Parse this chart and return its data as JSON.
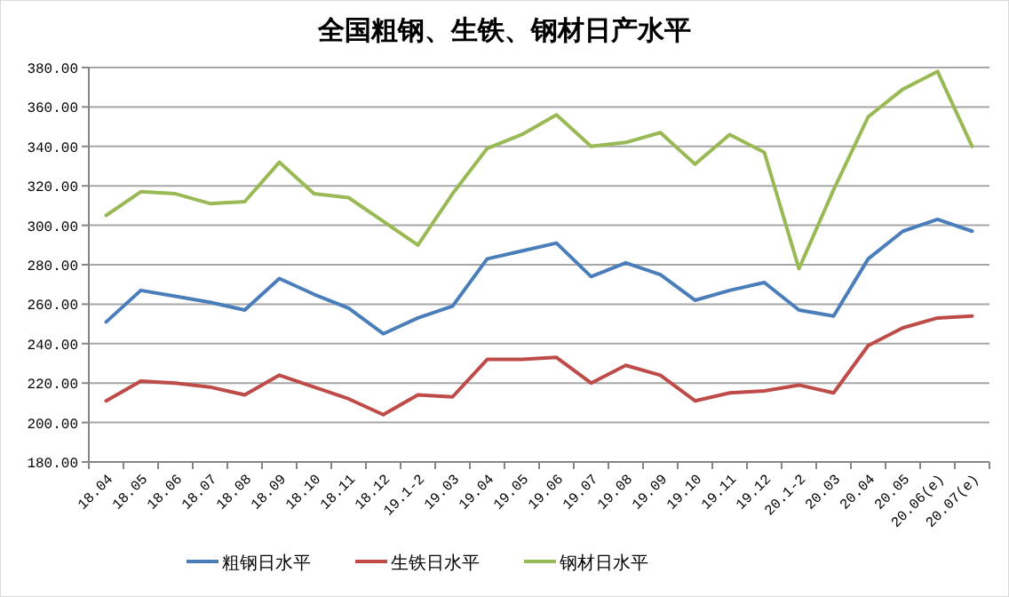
{
  "chart_data": {
    "type": "line",
    "title": "全国粗钢、生铁、钢材日产水平",
    "categories": [
      "18.04",
      "18.05",
      "18.06",
      "18.07",
      "18.08",
      "18.09",
      "18.10",
      "18.11",
      "18.12",
      "19.1-2",
      "19.03",
      "19.04",
      "19.05",
      "19.06",
      "19.07",
      "19.08",
      "19.09",
      "19.10",
      "19.11",
      "19.12",
      "20.1-2",
      "20.03",
      "20.04",
      "20.05",
      "20.06(e)",
      "20.07(e)"
    ],
    "series": [
      {
        "name": "粗钢日水平",
        "color": "#4a7ebb",
        "values": [
          251,
          267,
          264,
          261,
          257,
          273,
          265,
          258,
          245,
          253,
          259,
          283,
          287,
          291,
          274,
          281,
          275,
          262,
          267,
          271,
          257,
          254,
          283,
          297,
          303,
          297
        ]
      },
      {
        "name": "生铁日水平",
        "color": "#be4b48",
        "values": [
          211,
          221,
          220,
          218,
          214,
          224,
          218,
          212,
          204,
          214,
          213,
          232,
          232,
          233,
          220,
          229,
          224,
          211,
          215,
          216,
          219,
          215,
          239,
          248,
          253,
          254
        ]
      },
      {
        "name": "钢材日水平",
        "color": "#98b954",
        "values": [
          305,
          317,
          316,
          311,
          312,
          332,
          316,
          314,
          302,
          290,
          316,
          339,
          346,
          356,
          340,
          342,
          347,
          331,
          346,
          337,
          278,
          318,
          355,
          369,
          378,
          340
        ]
      }
    ],
    "ylim": [
      180,
      380
    ],
    "yticks": [
      {
        "value": 180,
        "label": "180.00"
      },
      {
        "value": 200,
        "label": "200.00"
      },
      {
        "value": 220,
        "label": "220.00"
      },
      {
        "value": 240,
        "label": "240.00"
      },
      {
        "value": 260,
        "label": "260.00"
      },
      {
        "value": 280,
        "label": "280.00"
      },
      {
        "value": 300,
        "label": "300.00"
      },
      {
        "value": 320,
        "label": "320.00"
      },
      {
        "value": 340,
        "label": "340.00"
      },
      {
        "value": 360,
        "label": "360.00"
      },
      {
        "value": 380,
        "label": "380.00"
      }
    ],
    "grid": "y",
    "legend": "bottom",
    "marker": "none",
    "line_style": "solid"
  }
}
